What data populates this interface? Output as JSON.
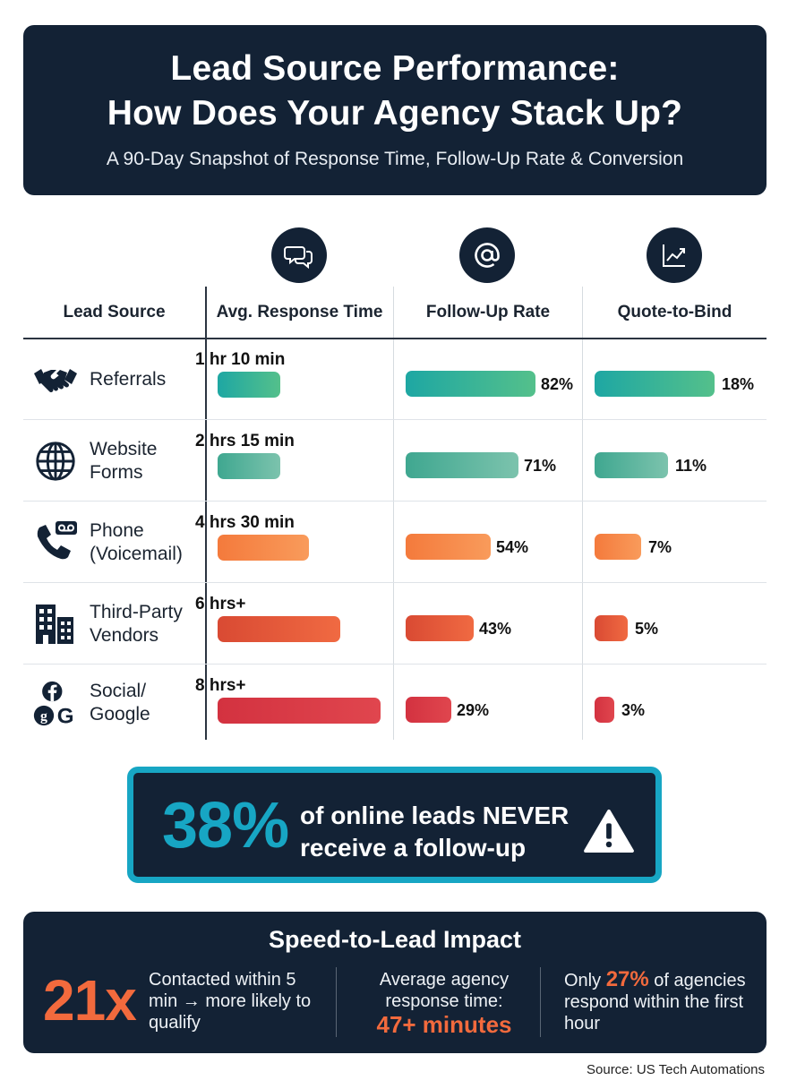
{
  "header": {
    "title_line1": "Lead Source Performance:",
    "title_line2": "How Does Your Agency Stack Up?",
    "subtitle": "A 90-Day Snapshot of Response Time, Follow-Up Rate & Conversion"
  },
  "chart_data": {
    "type": "bar",
    "columns": [
      "Lead Source",
      "Avg. Response Time",
      "Follow-Up Rate",
      "Quote-to-Bind"
    ],
    "column_icons": [
      "chat-bubbles-icon",
      "at-sign-icon",
      "trend-chart-icon"
    ],
    "categories": [
      "Referrals",
      "Website Forms",
      "Phone (Voicemail)",
      "Third-Party Vendors",
      "Social/ Google"
    ],
    "category_icons": [
      "handshake-icon",
      "globe-icon",
      "phone-voicemail-icon",
      "buildings-icon",
      "facebook-google-icon"
    ],
    "response_time_labels": [
      "1 hr 10 min",
      "2 hrs 15 min",
      "4 hrs 30 min",
      "6 hrs+",
      "8 hrs+"
    ],
    "series": [
      {
        "name": "Follow-Up Rate",
        "values": [
          82,
          71,
          54,
          43,
          29
        ],
        "unit": "%"
      },
      {
        "name": "Quote-to-Bind",
        "values": [
          18,
          11,
          7,
          5,
          3
        ],
        "unit": "%"
      }
    ],
    "response_time_minutes": [
      70,
      135,
      270,
      360,
      480
    ],
    "colors": [
      "#2aa58a",
      "#5fb9a0",
      "#f4823e",
      "#e4553b",
      "#d93a43"
    ],
    "bar_gradient_start": [
      "#1ea7a3",
      "#3fa790",
      "#f47a3c",
      "#d94a33",
      "#d33240"
    ],
    "bar_gradient_end": [
      "#54c08b",
      "#7cc3ad",
      "#f99b5b",
      "#f06a42",
      "#e0464e"
    ]
  },
  "callout": {
    "percent": "38%",
    "line1": "of online leads NEVER",
    "line2": "receive a follow-up"
  },
  "impact": {
    "title": "Speed-to-Lead Impact",
    "big_stat": "21x",
    "stat1_text": "Contacted within 5 min → more likely to qualify",
    "stat2_text": "Average agency response time:",
    "stat2_highlight": "47+ minutes",
    "stat3_prefix": "Only",
    "stat3_highlight": "27%",
    "stat3_suffix": "of agencies respond within the first hour"
  },
  "source": "Source: US Tech Automations",
  "colors": {
    "navy": "#132235",
    "teal": "#17a6c4",
    "orange": "#f26a3d"
  }
}
